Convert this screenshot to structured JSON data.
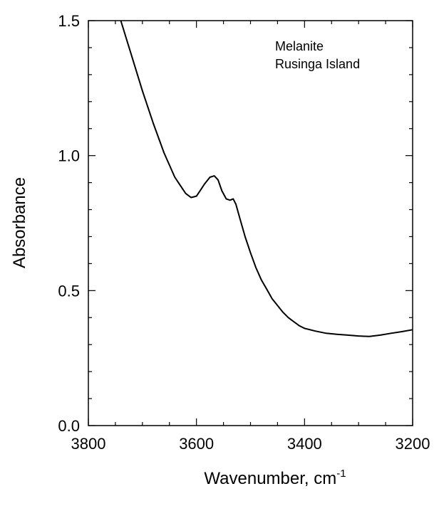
{
  "chart_data": {
    "type": "line",
    "xlabel": "Wavenumber, cm",
    "xlabel_sup": "-1",
    "ylabel": "Absorbance",
    "xlim": [
      3800,
      3200
    ],
    "ylim": [
      0.0,
      1.5
    ],
    "x_ticks": [
      3800,
      3600,
      3400,
      3200
    ],
    "x_tick_labels": [
      "3800",
      "3600",
      "3400",
      "3200"
    ],
    "y_ticks": [
      0.0,
      0.5,
      1.0,
      1.5
    ],
    "y_tick_labels": [
      "0.0",
      "0.5",
      "1.0",
      "1.5"
    ],
    "annotation": [
      "Melanite",
      "Rusinga Island"
    ],
    "grid": false,
    "line_color": "#000000",
    "series": [
      {
        "x": [
          3740,
          3720,
          3700,
          3680,
          3660,
          3640,
          3620,
          3610,
          3600,
          3595,
          3585,
          3575,
          3567,
          3560,
          3553,
          3545,
          3538,
          3532,
          3527,
          3520,
          3510,
          3500,
          3490,
          3480,
          3470,
          3460,
          3450,
          3440,
          3430,
          3420,
          3410,
          3400,
          3380,
          3360,
          3340,
          3320,
          3300,
          3280,
          3260,
          3240,
          3220,
          3200
        ],
        "y": [
          1.5,
          1.37,
          1.24,
          1.12,
          1.01,
          0.92,
          0.86,
          0.845,
          0.85,
          0.865,
          0.895,
          0.92,
          0.925,
          0.91,
          0.87,
          0.84,
          0.835,
          0.84,
          0.82,
          0.77,
          0.7,
          0.64,
          0.585,
          0.54,
          0.505,
          0.47,
          0.445,
          0.42,
          0.4,
          0.385,
          0.37,
          0.36,
          0.35,
          0.342,
          0.338,
          0.335,
          0.332,
          0.33,
          0.335,
          0.342,
          0.348,
          0.355
        ]
      }
    ]
  }
}
